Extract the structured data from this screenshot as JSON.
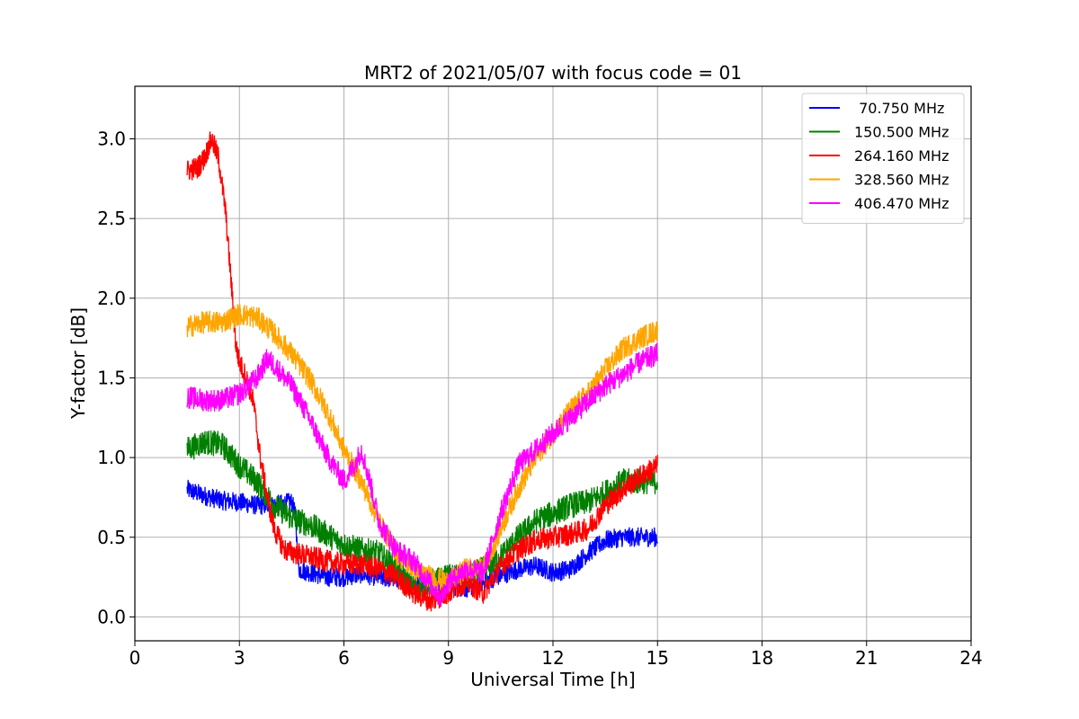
{
  "chart_data": {
    "type": "line",
    "title": "MRT2 of 2021/05/07 with focus code = 01",
    "xlabel": "Universal Time [h]",
    "ylabel": "Y-factor [dB]",
    "xlim": [
      0,
      24
    ],
    "ylim": [
      -0.15,
      3.33
    ],
    "xticks": [
      0,
      3,
      6,
      9,
      12,
      15,
      18,
      21,
      24
    ],
    "xtick_labels": [
      "0",
      "3",
      "6",
      "9",
      "12",
      "15",
      "18",
      "21",
      "24"
    ],
    "yticks": [
      0.0,
      0.5,
      1.0,
      1.5,
      2.0,
      2.5,
      3.0
    ],
    "ytick_labels": [
      "0.0",
      "0.5",
      "1.0",
      "1.5",
      "2.0",
      "2.5",
      "3.0"
    ],
    "grid": true,
    "legend_position": "top-right",
    "series": [
      {
        "name": " 70.750 MHz",
        "color": "#0000ff",
        "noise": 0.06,
        "points": [
          [
            1.5,
            0.8
          ],
          [
            2.0,
            0.76
          ],
          [
            2.5,
            0.73
          ],
          [
            3.0,
            0.72
          ],
          [
            3.5,
            0.7
          ],
          [
            4.0,
            0.7
          ],
          [
            4.5,
            0.72
          ],
          [
            4.6,
            0.65
          ],
          [
            4.7,
            0.3
          ],
          [
            5.0,
            0.28
          ],
          [
            5.5,
            0.25
          ],
          [
            6.0,
            0.25
          ],
          [
            6.5,
            0.27
          ],
          [
            7.0,
            0.25
          ],
          [
            7.5,
            0.24
          ],
          [
            8.0,
            0.22
          ],
          [
            8.5,
            0.22
          ],
          [
            9.0,
            0.2
          ],
          [
            9.5,
            0.18
          ],
          [
            10.0,
            0.22
          ],
          [
            10.5,
            0.26
          ],
          [
            11.0,
            0.3
          ],
          [
            11.5,
            0.32
          ],
          [
            12.0,
            0.28
          ],
          [
            12.5,
            0.3
          ],
          [
            13.0,
            0.4
          ],
          [
            13.5,
            0.48
          ],
          [
            14.0,
            0.5
          ],
          [
            14.5,
            0.5
          ],
          [
            15.0,
            0.5
          ]
        ]
      },
      {
        "name": "150.500 MHz",
        "color": "#008000",
        "noise": 0.08,
        "points": [
          [
            1.5,
            1.05
          ],
          [
            2.0,
            1.1
          ],
          [
            2.5,
            1.08
          ],
          [
            3.0,
            0.95
          ],
          [
            3.5,
            0.85
          ],
          [
            4.0,
            0.7
          ],
          [
            4.5,
            0.62
          ],
          [
            5.0,
            0.58
          ],
          [
            5.5,
            0.52
          ],
          [
            6.0,
            0.45
          ],
          [
            6.5,
            0.42
          ],
          [
            7.0,
            0.4
          ],
          [
            7.5,
            0.3
          ],
          [
            8.0,
            0.18
          ],
          [
            8.5,
            0.22
          ],
          [
            9.0,
            0.25
          ],
          [
            9.5,
            0.25
          ],
          [
            10.0,
            0.3
          ],
          [
            10.5,
            0.38
          ],
          [
            11.0,
            0.5
          ],
          [
            11.5,
            0.6
          ],
          [
            12.0,
            0.65
          ],
          [
            12.5,
            0.7
          ],
          [
            13.0,
            0.72
          ],
          [
            13.5,
            0.78
          ],
          [
            14.0,
            0.85
          ],
          [
            14.5,
            0.85
          ],
          [
            15.0,
            0.85
          ]
        ]
      },
      {
        "name": "264.160 MHz",
        "color": "#ff0000",
        "noise": 0.07,
        "points": [
          [
            1.5,
            2.8
          ],
          [
            1.8,
            2.82
          ],
          [
            2.0,
            2.88
          ],
          [
            2.2,
            3.0
          ],
          [
            2.4,
            2.88
          ],
          [
            2.6,
            2.55
          ],
          [
            2.8,
            2.0
          ],
          [
            2.9,
            1.7
          ],
          [
            3.0,
            1.6
          ],
          [
            3.2,
            1.5
          ],
          [
            3.4,
            1.35
          ],
          [
            3.6,
            1.0
          ],
          [
            3.8,
            0.75
          ],
          [
            4.0,
            0.55
          ],
          [
            4.3,
            0.42
          ],
          [
            4.6,
            0.4
          ],
          [
            5.0,
            0.38
          ],
          [
            5.5,
            0.35
          ],
          [
            6.0,
            0.33
          ],
          [
            6.5,
            0.33
          ],
          [
            7.0,
            0.3
          ],
          [
            7.5,
            0.25
          ],
          [
            8.0,
            0.15
          ],
          [
            8.5,
            0.1
          ],
          [
            9.0,
            0.15
          ],
          [
            9.5,
            0.22
          ],
          [
            10.0,
            0.15
          ],
          [
            10.5,
            0.32
          ],
          [
            11.0,
            0.42
          ],
          [
            11.5,
            0.48
          ],
          [
            12.0,
            0.5
          ],
          [
            12.5,
            0.52
          ],
          [
            13.0,
            0.55
          ],
          [
            13.5,
            0.7
          ],
          [
            14.0,
            0.8
          ],
          [
            14.5,
            0.88
          ],
          [
            15.0,
            0.95
          ]
        ]
      },
      {
        "name": "328.560 MHz",
        "color": "#ffa500",
        "noise": 0.07,
        "points": [
          [
            1.5,
            1.82
          ],
          [
            2.0,
            1.85
          ],
          [
            2.5,
            1.85
          ],
          [
            3.0,
            1.9
          ],
          [
            3.5,
            1.88
          ],
          [
            4.0,
            1.78
          ],
          [
            4.5,
            1.65
          ],
          [
            5.0,
            1.5
          ],
          [
            5.5,
            1.3
          ],
          [
            6.0,
            1.05
          ],
          [
            6.5,
            0.85
          ],
          [
            7.0,
            0.6
          ],
          [
            7.5,
            0.4
          ],
          [
            8.0,
            0.3
          ],
          [
            8.5,
            0.25
          ],
          [
            9.0,
            0.22
          ],
          [
            9.5,
            0.3
          ],
          [
            10.0,
            0.3
          ],
          [
            10.5,
            0.55
          ],
          [
            11.0,
            0.8
          ],
          [
            11.5,
            1.0
          ],
          [
            12.0,
            1.15
          ],
          [
            12.5,
            1.3
          ],
          [
            13.0,
            1.4
          ],
          [
            13.5,
            1.55
          ],
          [
            14.0,
            1.68
          ],
          [
            14.5,
            1.75
          ],
          [
            15.0,
            1.8
          ]
        ]
      },
      {
        "name": "406.470 MHz",
        "color": "#ff00ff",
        "noise": 0.07,
        "points": [
          [
            1.5,
            1.38
          ],
          [
            2.0,
            1.36
          ],
          [
            2.5,
            1.36
          ],
          [
            3.0,
            1.4
          ],
          [
            3.5,
            1.5
          ],
          [
            3.8,
            1.62
          ],
          [
            4.0,
            1.58
          ],
          [
            4.5,
            1.45
          ],
          [
            5.0,
            1.25
          ],
          [
            5.5,
            1.02
          ],
          [
            6.0,
            0.85
          ],
          [
            6.3,
            0.95
          ],
          [
            6.5,
            1.05
          ],
          [
            6.8,
            0.8
          ],
          [
            7.0,
            0.6
          ],
          [
            7.5,
            0.42
          ],
          [
            8.0,
            0.35
          ],
          [
            8.5,
            0.2
          ],
          [
            8.8,
            0.12
          ],
          [
            9.0,
            0.22
          ],
          [
            9.5,
            0.3
          ],
          [
            10.0,
            0.28
          ],
          [
            10.5,
            0.65
          ],
          [
            11.0,
            0.95
          ],
          [
            11.5,
            1.05
          ],
          [
            12.0,
            1.15
          ],
          [
            12.5,
            1.25
          ],
          [
            13.0,
            1.35
          ],
          [
            13.5,
            1.45
          ],
          [
            14.0,
            1.52
          ],
          [
            14.5,
            1.6
          ],
          [
            15.0,
            1.65
          ]
        ]
      }
    ]
  }
}
